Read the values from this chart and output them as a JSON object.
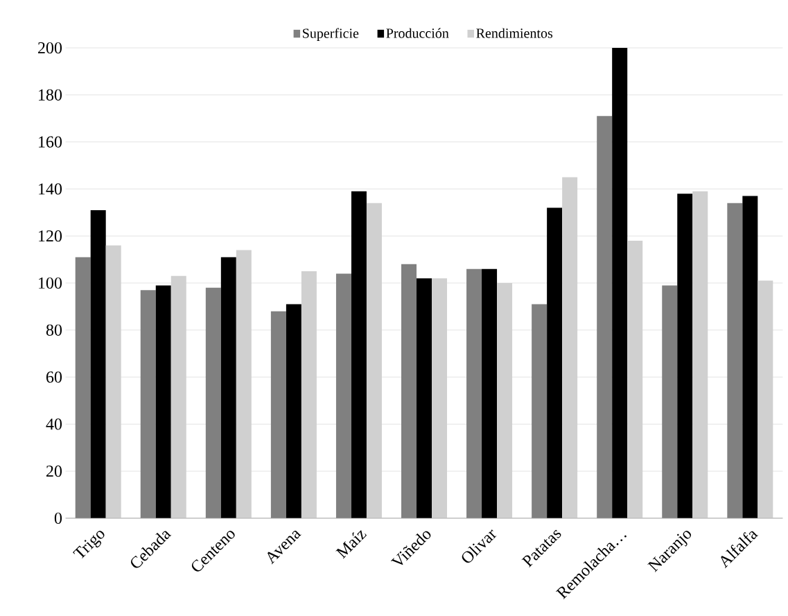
{
  "chart_data": {
    "type": "bar",
    "categories": [
      "Trigo",
      "Cebada",
      "Centeno",
      "Avena",
      "Maíz",
      "Viñedo",
      "Olivar",
      "Patatas",
      "Remolacha…",
      "Naranjo",
      "Alfalfa"
    ],
    "series": [
      {
        "name": "Superficie",
        "color": "#808080",
        "values": [
          111,
          97,
          98,
          88,
          104,
          108,
          106,
          91,
          171,
          99,
          134
        ]
      },
      {
        "name": "Producción",
        "color": "#000000",
        "values": [
          131,
          99,
          111,
          91,
          139,
          102,
          106,
          132,
          200,
          138,
          137
        ]
      },
      {
        "name": "Rendimientos",
        "color": "#d0d0d0",
        "values": [
          116,
          103,
          114,
          105,
          134,
          102,
          100,
          145,
          118,
          139,
          101
        ]
      }
    ],
    "ylim": [
      0,
      200
    ],
    "yticks": [
      0,
      20,
      40,
      60,
      80,
      100,
      120,
      140,
      160,
      180,
      200
    ],
    "grid": "y",
    "legend": "top"
  }
}
